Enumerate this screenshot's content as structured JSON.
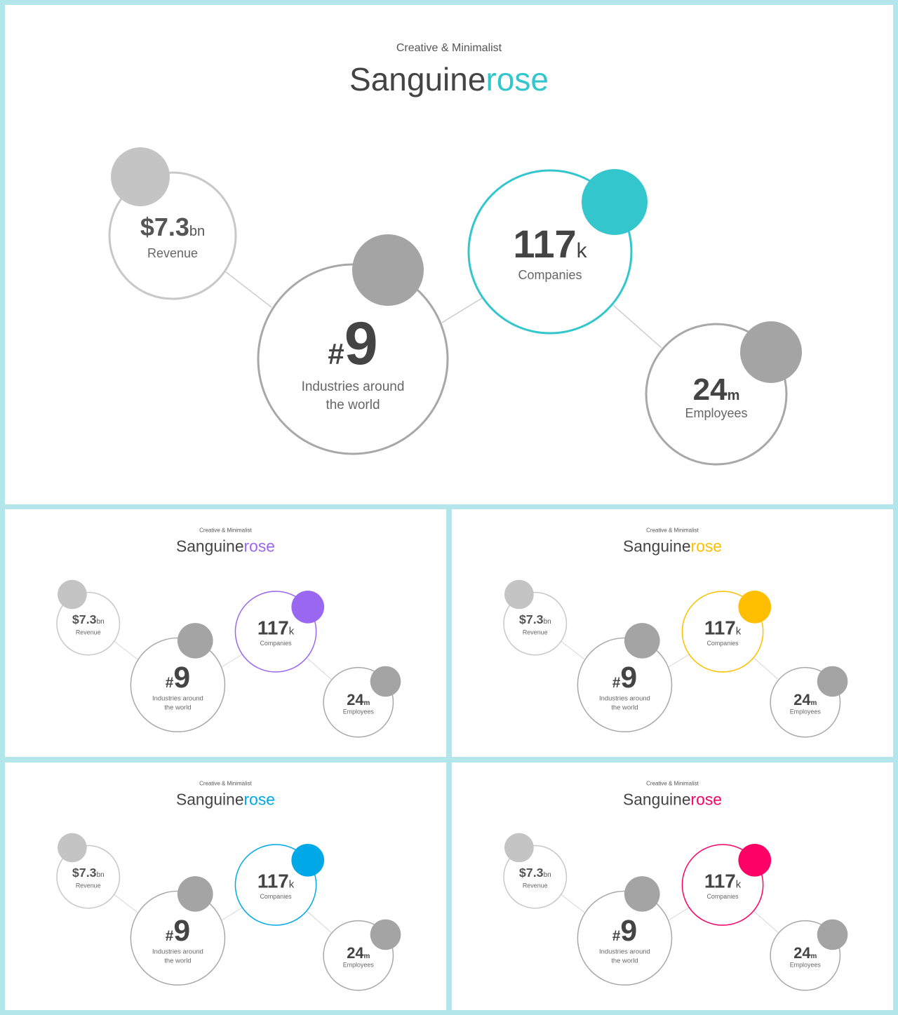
{
  "slides": [
    {
      "id": "main",
      "subtitle": "Creative & Minimalist",
      "title_part1": "Sanguine",
      "title_part2": "rose",
      "accent": "#33c6cc",
      "stats": {
        "revenue": {
          "value": "$7.3",
          "unit": "bn",
          "label": "Revenue"
        },
        "industries": {
          "prefix": "#",
          "value": "9",
          "label_line1": "Industries around",
          "label_line2": "the world"
        },
        "companies": {
          "value": "117",
          "unit": "k",
          "label": "Companies"
        },
        "employees": {
          "value": "24",
          "unit": "m",
          "label": "Employees"
        }
      }
    },
    {
      "id": "purple",
      "subtitle": "Creative & Minimalist",
      "title_part1": "Sanguine",
      "title_part2": "rose",
      "accent": "#9a67f0",
      "stats": {
        "revenue": {
          "value": "$7.3",
          "unit": "bn",
          "label": "Revenue"
        },
        "industries": {
          "prefix": "#",
          "value": "9",
          "label_line1": "Industries around",
          "label_line2": "the world"
        },
        "companies": {
          "value": "117",
          "unit": "k",
          "label": "Companies"
        },
        "employees": {
          "value": "24",
          "unit": "m",
          "label": "Employees"
        }
      }
    },
    {
      "id": "yellow",
      "subtitle": "Creative & Minimalist",
      "title_part1": "Sanguine",
      "title_part2": "rose",
      "accent": "#ffbf00",
      "stats": {
        "revenue": {
          "value": "$7.3",
          "unit": "bn",
          "label": "Revenue"
        },
        "industries": {
          "prefix": "#",
          "value": "9",
          "label_line1": "Industries around",
          "label_line2": "the world"
        },
        "companies": {
          "value": "117",
          "unit": "k",
          "label": "Companies"
        },
        "employees": {
          "value": "24",
          "unit": "m",
          "label": "Employees"
        }
      }
    },
    {
      "id": "blue",
      "subtitle": "Creative & Minimalist",
      "title_part1": "Sanguine",
      "title_part2": "rose",
      "accent": "#00a8e8",
      "stats": {
        "revenue": {
          "value": "$7.3",
          "unit": "bn",
          "label": "Revenue"
        },
        "industries": {
          "prefix": "#",
          "value": "9",
          "label_line1": "Industries around",
          "label_line2": "the world"
        },
        "companies": {
          "value": "117",
          "unit": "k",
          "label": "Companies"
        },
        "employees": {
          "value": "24",
          "unit": "m",
          "label": "Employees"
        }
      }
    },
    {
      "id": "pink",
      "subtitle": "Creative & Minimalist",
      "title_part1": "Sanguine",
      "title_part2": "rose",
      "accent": "#ff0066",
      "stats": {
        "revenue": {
          "value": "$7.3",
          "unit": "bn",
          "label": "Revenue"
        },
        "industries": {
          "prefix": "#",
          "value": "9",
          "label_line1": "Industries around",
          "label_line2": "the world"
        },
        "companies": {
          "value": "117",
          "unit": "k",
          "label": "Companies"
        },
        "employees": {
          "value": "24",
          "unit": "m",
          "label": "Employees"
        }
      }
    }
  ]
}
